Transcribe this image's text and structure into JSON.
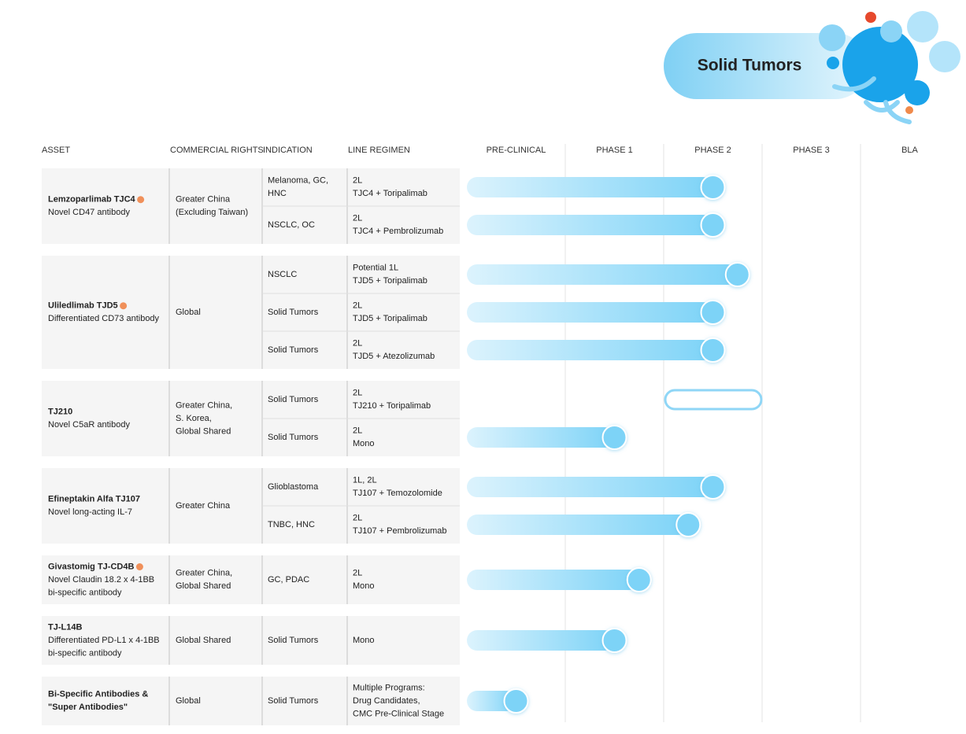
{
  "header": {
    "title": "Solid Tumors"
  },
  "columns": [
    "ASSET",
    "COMMERCIAL RIGHTS",
    "INDICATION",
    "LINE REGIMEN"
  ],
  "phases": [
    "PRE-CLINICAL",
    "PHASE 1",
    "PHASE 2",
    "PHASE 3",
    "BLA"
  ],
  "groups": [
    {
      "asset": [
        "Lemzoparlimab TJC4"
      ],
      "marker": true,
      "description": [
        "Novel CD47 antibody"
      ],
      "rights": [
        "Greater China",
        "(Excluding Taiwan)"
      ],
      "rows": [
        {
          "indication": [
            "Melanoma, GC,",
            "HNC"
          ],
          "regimen": [
            "2L",
            "TJC4 + Toripalimab"
          ],
          "progress": 2.5
        },
        {
          "indication": [
            "NSCLC, OC"
          ],
          "regimen": [
            "2L",
            "TJC4 + Pembrolizumab"
          ],
          "progress": 2.5
        }
      ]
    },
    {
      "asset": [
        "Uliledlimab TJD5"
      ],
      "marker": true,
      "description": [
        "Differentiated CD73 antibody"
      ],
      "rights": [
        "Global"
      ],
      "rows": [
        {
          "indication": [
            "NSCLC"
          ],
          "regimen": [
            "Potential 1L",
            "TJD5 + Toripalimab"
          ],
          "progress": 2.75
        },
        {
          "indication": [
            "Solid Tumors"
          ],
          "regimen": [
            "2L",
            "TJD5 + Toripalimab"
          ],
          "progress": 2.5
        },
        {
          "indication": [
            "Solid Tumors"
          ],
          "regimen": [
            "2L",
            "TJD5 + Atezolizumab"
          ],
          "progress": 2.5
        }
      ]
    },
    {
      "asset": [
        "TJ210"
      ],
      "marker": false,
      "description": [
        "Novel C5aR antibody"
      ],
      "rights": [
        "Greater China,",
        "S. Korea,",
        "Global Shared"
      ],
      "rows": [
        {
          "indication": [
            "Solid Tumors"
          ],
          "regimen": [
            "2L",
            "TJ210 + Toripalimab"
          ],
          "planned": [
            2,
            3
          ]
        },
        {
          "indication": [
            "Solid Tumors"
          ],
          "regimen": [
            "2L",
            "Mono"
          ],
          "progress": 1.5
        }
      ]
    },
    {
      "asset": [
        "Efineptakin Alfa TJ107"
      ],
      "marker": false,
      "description": [
        "Novel long-acting IL-7"
      ],
      "rights": [
        "Greater China"
      ],
      "rows": [
        {
          "indication": [
            "Glioblastoma"
          ],
          "regimen": [
            "1L, 2L",
            "TJ107 + Temozolomide"
          ],
          "progress": 2.5
        },
        {
          "indication": [
            "TNBC, HNC"
          ],
          "regimen": [
            "2L",
            "TJ107 + Pembrolizumab"
          ],
          "progress": 2.25
        }
      ]
    },
    {
      "asset": [
        "Givastomig TJ-CD4B"
      ],
      "marker": true,
      "description": [
        "Novel Claudin 18.2 x 4-1BB",
        "bi-specific antibody"
      ],
      "rights": [
        "Greater China,",
        "Global Shared"
      ],
      "rows": [
        {
          "indication": [
            "GC, PDAC"
          ],
          "regimen": [
            "2L",
            "Mono"
          ],
          "progress": 1.75
        }
      ]
    },
    {
      "asset": [
        "TJ-L14B"
      ],
      "marker": false,
      "description": [
        "Differentiated PD-L1 x 4-1BB",
        "bi-specific antibody"
      ],
      "rights": [
        "Global Shared"
      ],
      "rows": [
        {
          "indication": [
            "Solid Tumors"
          ],
          "regimen": [
            "Mono"
          ],
          "progress": 1.5
        }
      ]
    },
    {
      "asset": [
        "Bi-Specific Antibodies &",
        "\"Super Antibodies\""
      ],
      "marker": false,
      "description": [],
      "rights": [
        "Global"
      ],
      "rows": [
        {
          "indication": [
            "Solid Tumors"
          ],
          "regimen": [
            "Multiple Programs:",
            "Drug Candidates,",
            "CMC Pre-Clinical Stage"
          ],
          "progress": 0.5
        }
      ]
    }
  ]
}
